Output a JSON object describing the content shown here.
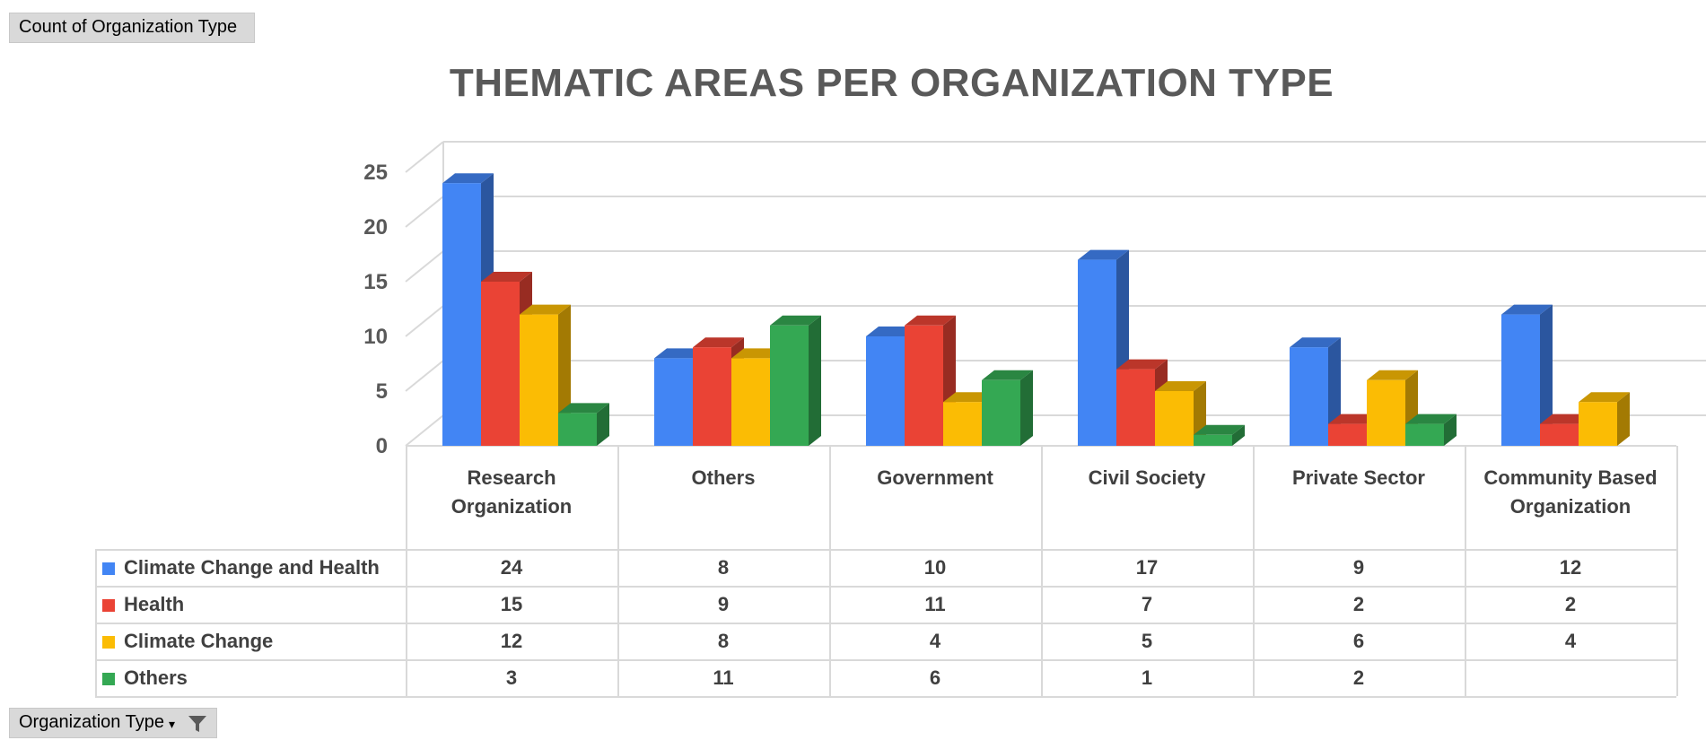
{
  "pivot": {
    "value_field": "Count of Organization Type",
    "filter_field": "Organization Type"
  },
  "colors": {
    "Climate Change and Health": "#4285f4",
    "Health": "#ea4335",
    "Climate Change": "#fbbc04",
    "Others": "#34a853",
    "axis_text": "#595959",
    "grid": "#d9d9d9"
  },
  "chart_data": {
    "type": "bar",
    "title": "THEMATIC AREAS PER ORGANIZATION TYPE",
    "xlabel": "",
    "ylabel": "",
    "ylim": [
      0,
      25
    ],
    "yticks": [
      "0",
      "5",
      "10",
      "15",
      "20",
      "25"
    ],
    "grid": true,
    "legend": "data-table",
    "categories": [
      "Research Organization",
      "Others",
      "Government",
      "Civil Society",
      "Private Sector",
      "Community Based Organization"
    ],
    "series": [
      {
        "name": "Climate Change and Health",
        "values": [
          24,
          8,
          10,
          17,
          9,
          12
        ]
      },
      {
        "name": "Health",
        "values": [
          15,
          9,
          11,
          7,
          2,
          2
        ]
      },
      {
        "name": "Climate Change",
        "values": [
          12,
          8,
          4,
          5,
          6,
          4
        ]
      },
      {
        "name": "Others",
        "values": [
          3,
          11,
          6,
          1,
          2,
          null
        ]
      }
    ]
  }
}
